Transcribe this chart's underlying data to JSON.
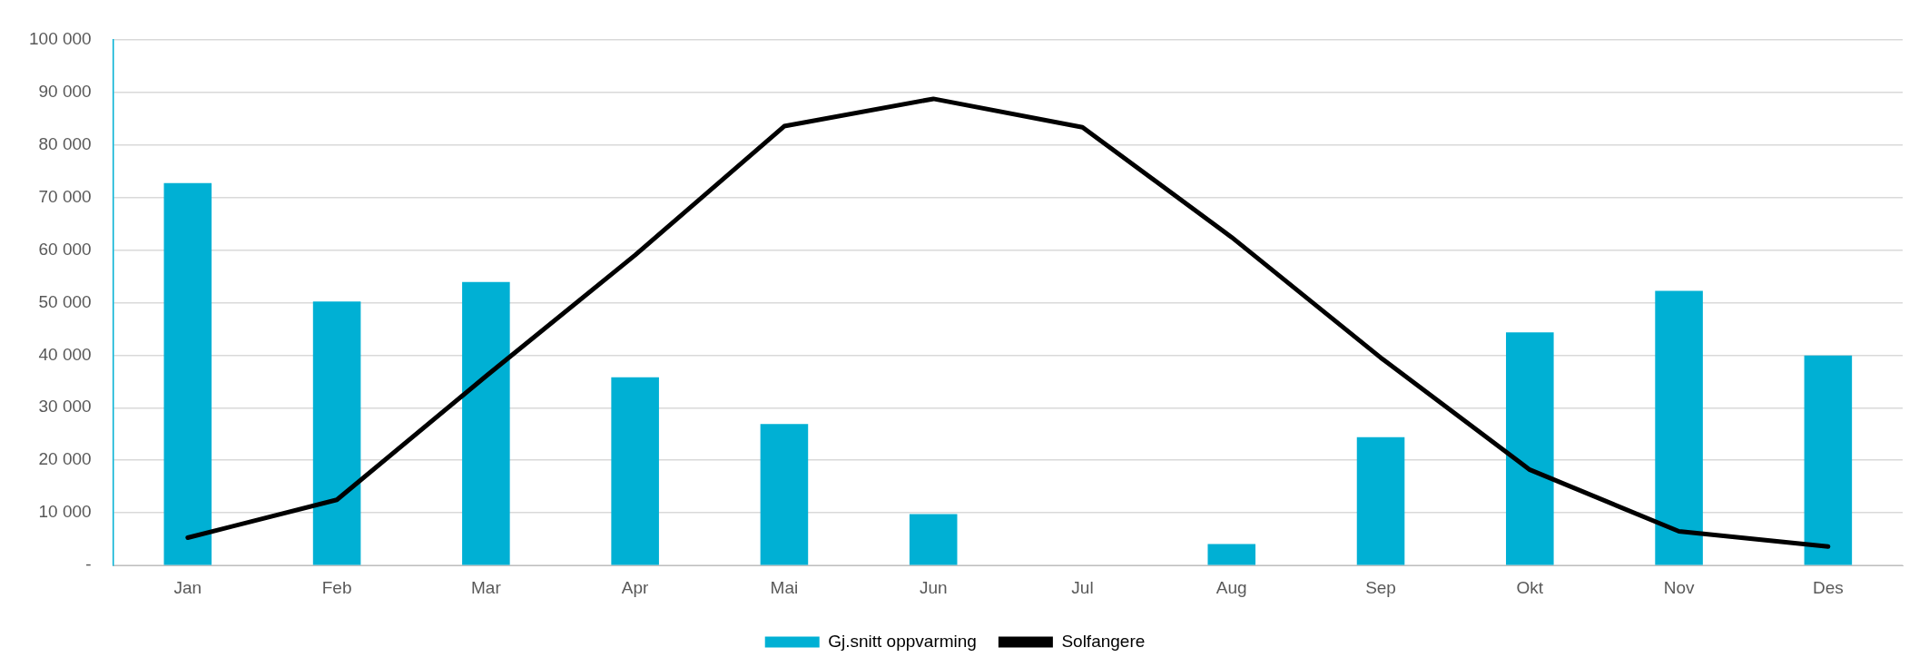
{
  "chart_data": {
    "type": "bar",
    "categories": [
      "Jan",
      "Feb",
      "Mar",
      "Apr",
      "Mai",
      "Jun",
      "Jul",
      "Aug",
      "Sep",
      "Okt",
      "Nov",
      "Des"
    ],
    "series": [
      {
        "name": "Gj.snitt oppvarming",
        "color": "#00b0d4",
        "values": [
          72700,
          50200,
          53900,
          35800,
          26900,
          9800,
          0,
          4100,
          24400,
          44300,
          52200,
          39900
        ]
      },
      {
        "name": "Solfangere",
        "type": "line",
        "color": "#000000",
        "values": [
          5300,
          12500,
          36000,
          59000,
          83500,
          88700,
          83300,
          62400,
          39500,
          18200,
          6500,
          3600
        ]
      }
    ],
    "ylim": [
      0,
      100000
    ],
    "yticks": [
      {
        "value": 0,
        "label": "-"
      },
      {
        "value": 10000,
        "label": "10 000"
      },
      {
        "value": 20000,
        "label": "20 000"
      },
      {
        "value": 30000,
        "label": "30 000"
      },
      {
        "value": 40000,
        "label": "40 000"
      },
      {
        "value": 50000,
        "label": "50 000"
      },
      {
        "value": 60000,
        "label": "60 000"
      },
      {
        "value": 70000,
        "label": "70 000"
      },
      {
        "value": 80000,
        "label": "80 000"
      },
      {
        "value": 90000,
        "label": "90 000"
      },
      {
        "value": 100000,
        "label": "100 000"
      }
    ],
    "grid": "y",
    "legend": "bottom",
    "marker": "none",
    "line_style": "solid"
  }
}
